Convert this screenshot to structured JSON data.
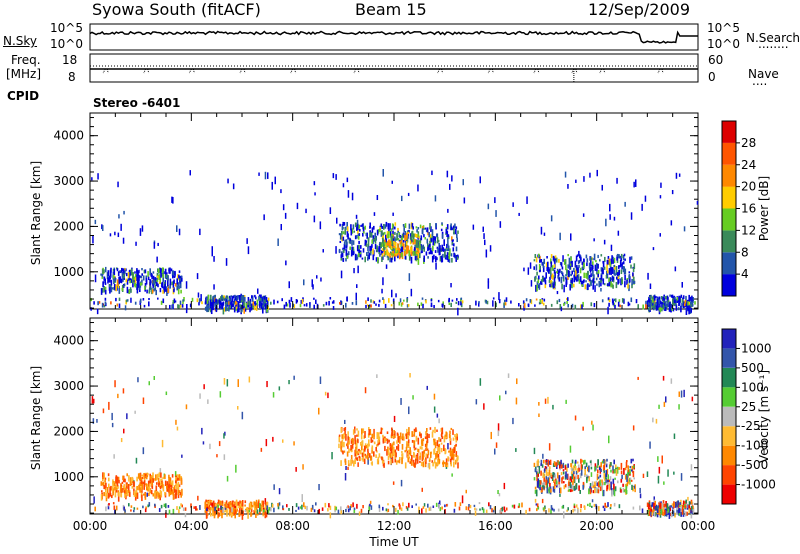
{
  "header": {
    "station": "Syowa South (fitACF)",
    "beam": "Beam 15",
    "date": "12/Sep/2009",
    "mode": "Stereo -6401"
  },
  "left_labels": {
    "nsky": "N.Sky",
    "freq": "Freq.",
    "freq_unit": "[MHz]",
    "cpid": "CPID"
  },
  "right_labels": {
    "nsearch": "N.Search",
    "nave": "Nave",
    "nsearch_key": "........",
    "nave_key": "...."
  },
  "panel_ticks": {
    "noise_left": [
      "10^5",
      "10^0"
    ],
    "noise_right": [
      "10^5",
      "10^0"
    ],
    "freq_left": [
      "18",
      "8"
    ],
    "freq_right": [
      "60",
      "0"
    ]
  },
  "colors": {
    "power_scale": [
      "#0000dd",
      "#2255aa",
      "#3a8a5a",
      "#66cc22",
      "#ffcc00",
      "#ff8800",
      "#ff5500",
      "#dd0000"
    ],
    "velocity_scale": [
      "#ee0000",
      "#ff4400",
      "#ff8800",
      "#ffbb33",
      "#bbbbbb",
      "#55cc33",
      "#228855",
      "#3355aa",
      "#2222bb"
    ]
  },
  "chart_data": [
    {
      "type": "heatmap",
      "title": "",
      "xlabel": "",
      "ylabel": "Slant Range [km]",
      "xlim": [
        "00:00",
        "24:00"
      ],
      "ylim": [
        180,
        4500
      ],
      "y_ticks": [
        "1000",
        "2000",
        "3000",
        "4000"
      ],
      "colorbar_label": "Power [dB]",
      "colorbar_ticks": [
        "4",
        "8",
        "12",
        "16",
        "20",
        "24",
        "28"
      ],
      "scatter_regions": [
        {
          "t_start": 0.4,
          "t_end": 3.6,
          "r_low": 600,
          "r_high": 1100,
          "level": "mixed"
        },
        {
          "t_start": 4.5,
          "t_end": 7.0,
          "r_low": 200,
          "r_high": 500,
          "level": "mixed"
        },
        {
          "t_start": 9.8,
          "t_end": 14.5,
          "r_low": 1300,
          "r_high": 2100,
          "level": "mixed"
        },
        {
          "t_start": 11.5,
          "t_end": 13.0,
          "r_low": 1400,
          "r_high": 1900,
          "level": "strong"
        },
        {
          "t_start": 17.5,
          "t_end": 21.5,
          "r_low": 700,
          "r_high": 1400,
          "level": "mixed"
        },
        {
          "t_start": 22.0,
          "t_end": 23.8,
          "r_low": 200,
          "r_high": 500,
          "level": "mixed"
        }
      ]
    },
    {
      "type": "heatmap",
      "title": "",
      "xlabel": "Time UT",
      "ylabel": "Slant Range [km]",
      "xlim": [
        "00:00",
        "24:00"
      ],
      "ylim": [
        180,
        4500
      ],
      "x_ticks": [
        "00:00",
        "04:00",
        "08:00",
        "12:00",
        "16:00",
        "20:00",
        "00:00"
      ],
      "y_ticks": [
        "1000",
        "2000",
        "3000",
        "4000"
      ],
      "colorbar_label": "Velocity [m s⁻¹]",
      "colorbar_ticks": [
        "-1000",
        "-500",
        "-100",
        "-25",
        "25",
        "100",
        "500",
        "1000"
      ],
      "scatter_regions": [
        {
          "t_start": 0.4,
          "t_end": 3.6,
          "r_low": 600,
          "r_high": 1100,
          "level": "negative"
        },
        {
          "t_start": 4.5,
          "t_end": 7.0,
          "r_low": 200,
          "r_high": 500,
          "level": "negative"
        },
        {
          "t_start": 9.8,
          "t_end": 14.5,
          "r_low": 1300,
          "r_high": 2100,
          "level": "negative"
        },
        {
          "t_start": 17.5,
          "t_end": 21.5,
          "r_low": 700,
          "r_high": 1400,
          "level": "mixed"
        },
        {
          "t_start": 22.0,
          "t_end": 23.8,
          "r_low": 200,
          "r_high": 500,
          "level": "mixed"
        }
      ]
    }
  ]
}
